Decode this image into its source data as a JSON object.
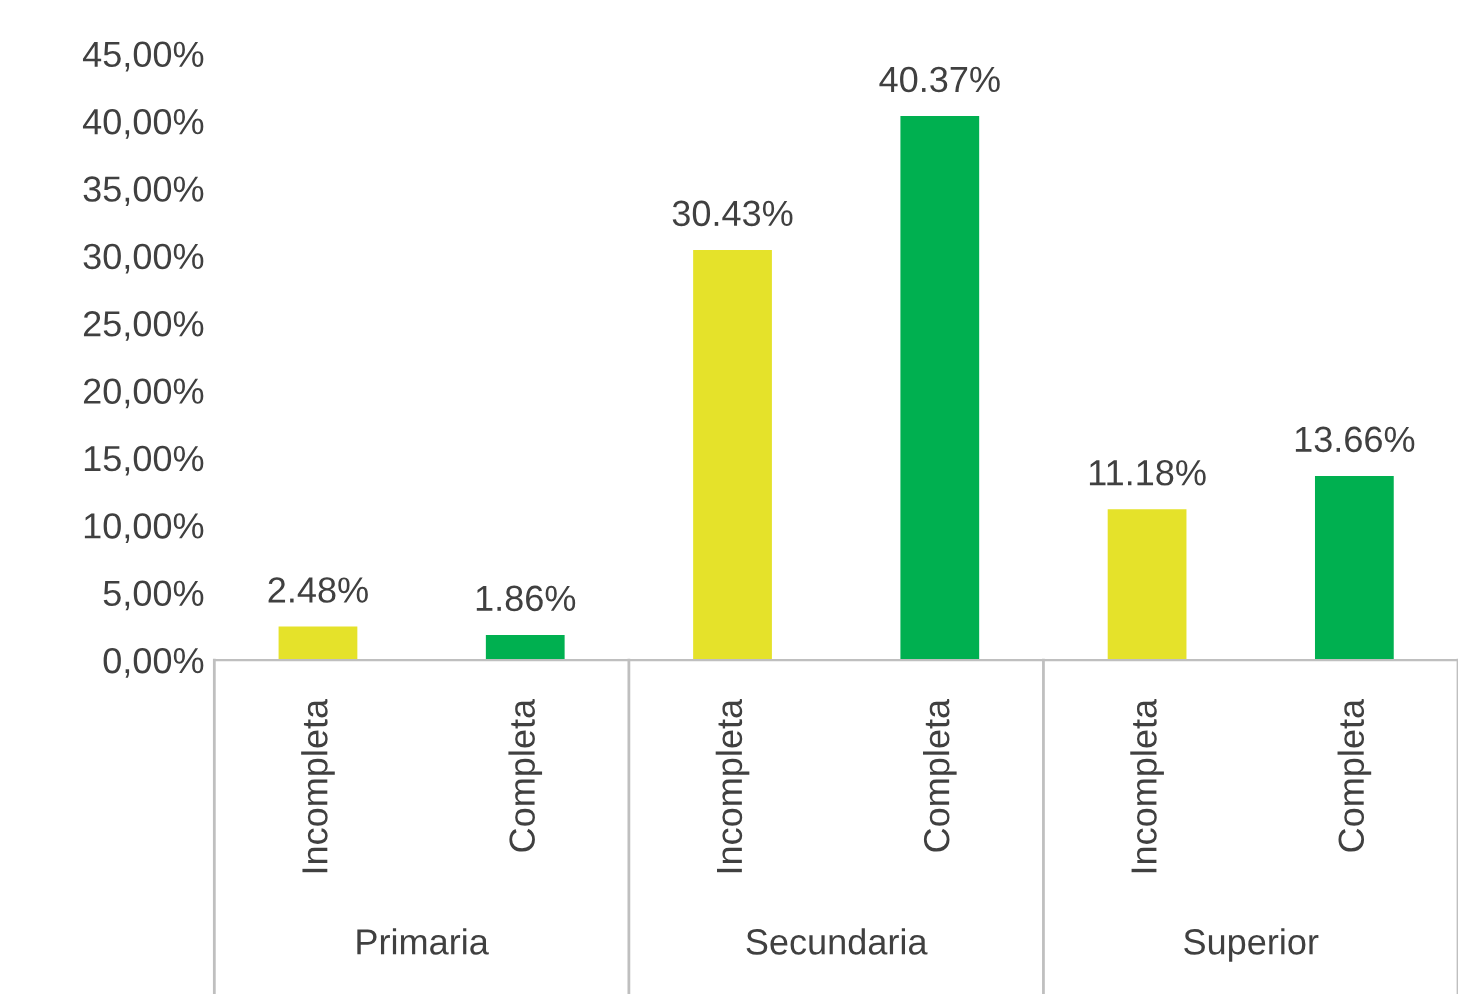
{
  "chart_data": {
    "type": "bar",
    "categories": [
      "Incompleta",
      "Completa",
      "Incompleta",
      "Completa",
      "Incompleta",
      "Completa"
    ],
    "values": [
      2.48,
      1.86,
      30.43,
      40.37,
      11.18,
      13.66
    ],
    "value_labels": [
      "2.48%",
      "1.86%",
      "30.43%",
      "40.37%",
      "11.18%",
      "13.66%"
    ],
    "colors": [
      "#e5e22a",
      "#00b050",
      "#e5e22a",
      "#00b050",
      "#e5e22a",
      "#00b050"
    ],
    "annotations": [
      "Primaria",
      "Secundaria",
      "Superior"
    ],
    "ylim": [
      0,
      45
    ],
    "yticks": [
      {
        "value": 0,
        "label": "0,00%"
      },
      {
        "value": 5,
        "label": "5,00%"
      },
      {
        "value": 10,
        "label": "10,00%"
      },
      {
        "value": 15,
        "label": "15,00%"
      },
      {
        "value": 20,
        "label": "20,00%"
      },
      {
        "value": 25,
        "label": "25,00%"
      },
      {
        "value": 30,
        "label": "30,00%"
      },
      {
        "value": 35,
        "label": "35,00%"
      },
      {
        "value": 40,
        "label": "40,00%"
      },
      {
        "value": 45,
        "label": "45,00%"
      }
    ],
    "grid": false,
    "legend": false
  }
}
